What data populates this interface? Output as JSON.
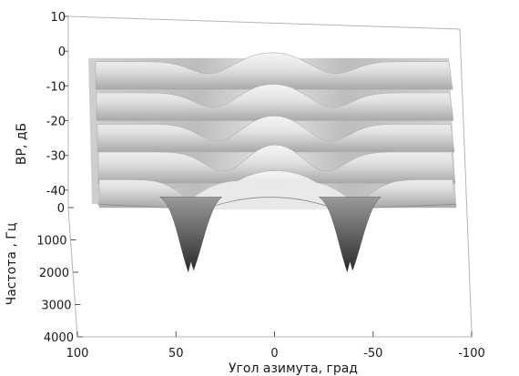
{
  "chart_data": {
    "type": "surface",
    "title": "",
    "zlabel": "ВР, дБ",
    "ylabel": "Частота , Гц",
    "xlabel": "Угол азимута, град",
    "x_ticks": [
      "100",
      "50",
      "0",
      "-50",
      "-100"
    ],
    "x_tick_values": [
      100,
      50,
      0,
      -50,
      -100
    ],
    "y_ticks": [
      "0",
      "1000",
      "2000",
      "3000",
      "4000"
    ],
    "y_tick_values": [
      0,
      1000,
      2000,
      3000,
      4000
    ],
    "z_ticks": [
      "10",
      "0",
      "-10",
      "-20",
      "-30",
      "-40"
    ],
    "z_tick_values": [
      10,
      0,
      -10,
      -20,
      -30,
      -40
    ],
    "xlim": [
      100,
      -100
    ],
    "ylim": [
      0,
      4000
    ],
    "zlim": [
      -45,
      10
    ],
    "colormap": "gray",
    "surface_rows": [
      {
        "frequency": 4000,
        "top": -3,
        "bottom": -11,
        "valley_offset": 35
      },
      {
        "frequency": 3000,
        "top": -12,
        "bottom": -20,
        "valley_offset": 33
      },
      {
        "frequency": 2000,
        "top": -21,
        "bottom": -29,
        "valley_offset": 31
      },
      {
        "frequency": 1000,
        "top": -29,
        "bottom": -38,
        "valley_offset": 28
      },
      {
        "frequency": 0,
        "top": -37,
        "bottom": -45,
        "valley_offset": 42
      }
    ],
    "notches": [
      {
        "angle": 45,
        "depth": -62
      },
      {
        "angle": -45,
        "depth": -62
      }
    ]
  }
}
